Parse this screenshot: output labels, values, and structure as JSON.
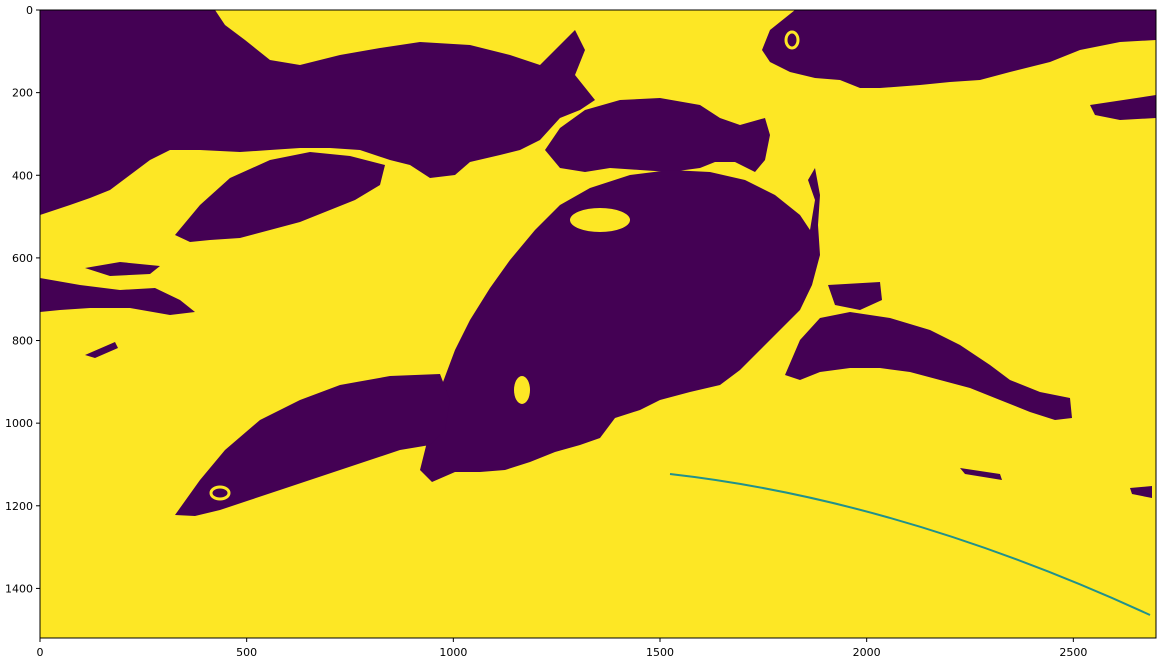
{
  "chart_data": {
    "type": "heatmap",
    "title": "",
    "xlabel": "",
    "ylabel": "",
    "xlim": [
      0,
      2700
    ],
    "ylim": [
      1520,
      0
    ],
    "x_ticks": [
      0,
      500,
      1000,
      1500,
      2000,
      2500
    ],
    "y_ticks": [
      0,
      200,
      400,
      600,
      800,
      1000,
      1200,
      1400
    ],
    "colors": {
      "high": "#fde725",
      "low": "#440154",
      "edge": "#21918c"
    },
    "image_desc": "binary segmentation mask of fish (dark) on bright background",
    "grid": false
  }
}
